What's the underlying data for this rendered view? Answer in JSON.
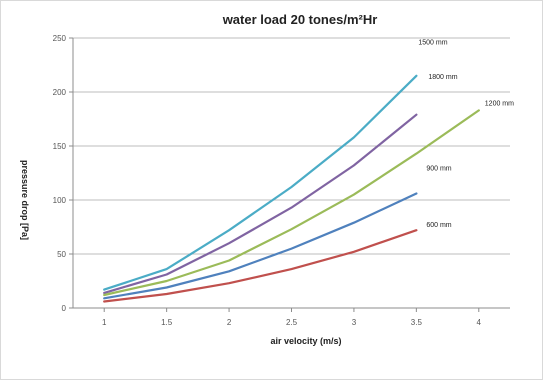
{
  "chart_data": {
    "type": "line",
    "title": "water load 20 tones/m²Hr",
    "xlabel": "air velocity (m/s)",
    "ylabel": "pressure drop [Pa]",
    "xlim": [
      0.75,
      4.25
    ],
    "ylim": [
      0,
      250
    ],
    "x_ticks": [
      "1",
      "1.5",
      "2",
      "2.5",
      "3",
      "3.5",
      "4"
    ],
    "y_ticks": [
      "0",
      "50",
      "100",
      "150",
      "200",
      "250"
    ],
    "grid": "horizontal",
    "legend": "inline labels at line ends",
    "series": [
      {
        "name": "1800 mm",
        "color": "#4bacc6",
        "x": [
          1,
          1.5,
          2,
          2.5,
          3,
          3.5
        ],
        "y": [
          17,
          36,
          72,
          112,
          158,
          215
        ]
      },
      {
        "name": "1500 mm",
        "color": "#8064a2",
        "x": [
          1,
          1.5,
          2,
          2.5,
          3,
          3.5
        ],
        "y": [
          14,
          31,
          60,
          93,
          132,
          179
        ]
      },
      {
        "name": "1200 mm",
        "color": "#9bbb59",
        "x": [
          1,
          1.5,
          2,
          2.5,
          3,
          3.5,
          4
        ],
        "y": [
          12,
          25,
          44,
          73,
          105,
          143,
          183
        ]
      },
      {
        "name": "900 mm",
        "color": "#4f81bd",
        "x": [
          1,
          1.5,
          2,
          2.5,
          3,
          3.5
        ],
        "y": [
          9,
          19,
          34,
          55,
          79,
          106
        ]
      },
      {
        "name": "600 mm",
        "color": "#c0504d",
        "x": [
          1,
          1.5,
          2,
          2.5,
          3,
          3.5
        ],
        "y": [
          6,
          13,
          23,
          36,
          52,
          72
        ]
      }
    ]
  }
}
